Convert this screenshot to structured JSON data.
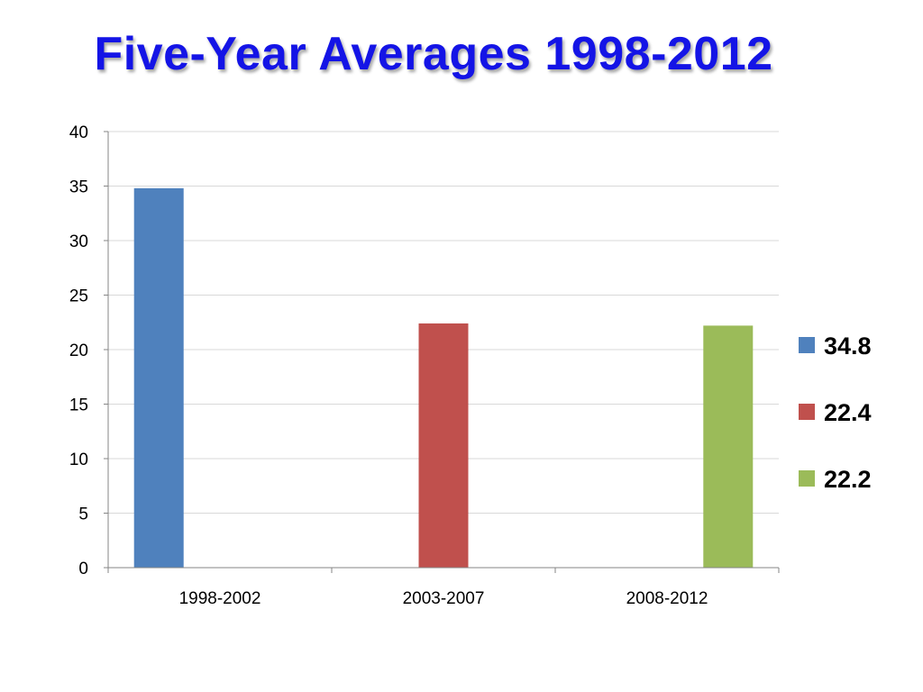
{
  "chart_data": {
    "type": "bar",
    "title": "Five-Year Averages 1998-2012",
    "xlabel": "",
    "ylabel": "",
    "categories": [
      "1998-2002",
      "2003-2007",
      "2008-2012"
    ],
    "series": [
      {
        "name": "34.8",
        "color": "#4f81bd",
        "values": [
          34.8,
          null,
          null
        ]
      },
      {
        "name": "22.4",
        "color": "#c0504d",
        "values": [
          null,
          22.4,
          null
        ]
      },
      {
        "name": "22.2",
        "color": "#9bbb59",
        "values": [
          null,
          null,
          22.2
        ]
      }
    ],
    "ylim": [
      0,
      40
    ],
    "yticks": [
      "0",
      "5",
      "10",
      "15",
      "20",
      "25",
      "30",
      "35",
      "40"
    ],
    "grid": true,
    "legend_position": "right"
  }
}
